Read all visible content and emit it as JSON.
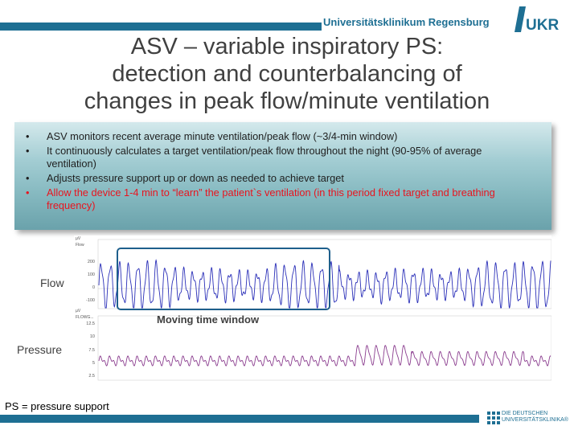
{
  "header": {
    "org_name": "Universitätsklinikum Regensburg",
    "logo_text": "UKR",
    "brand_color": "#1e6f93"
  },
  "title": {
    "line1": "ASV – variable inspiratory PS:",
    "line2": "detection and counterbalancing of",
    "line3": "changes in peak flow/minute ventilation"
  },
  "bullets": [
    "ASV monitors recent average minute ventilation/peak flow (~3/4-min window)",
    "It continuously calculates a target ventilation/peak flow throughout the night (90-95% of average ventilation)",
    "Adjusts pressure support up or down as needed to achieve target",
    "Allow the device 1-4 min to “learn” the patient`s ventilation (in this period fixed target and breathing frequency)"
  ],
  "highlight_color": "#e8141e",
  "figure": {
    "flow_label": "Flow",
    "pressure_label": "Pressure",
    "window_label": "Moving time window",
    "flow_panel": {
      "unit": "µV",
      "channel": "Flow",
      "ticks": [
        "200",
        "100",
        "0",
        "-100"
      ],
      "line_color": "#2a2fb8"
    },
    "pressure_panel": {
      "unit": "µV",
      "channel": "FLOWG...",
      "ticks": [
        "12.5",
        "10",
        "7.5",
        "5",
        "2.5"
      ],
      "line_color": "#8a3c8e"
    }
  },
  "footnote": "PS = pressure support",
  "footer_logo": {
    "line1": "DIE DEUTSCHEN",
    "line2": "UNIVERSITÄTSKLINIKA®"
  }
}
